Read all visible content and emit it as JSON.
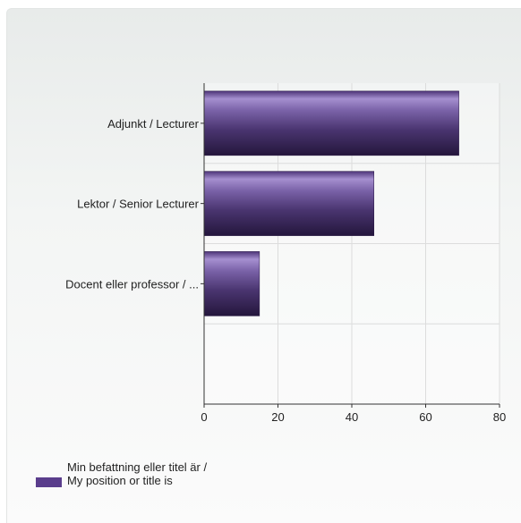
{
  "chart_data": {
    "type": "bar",
    "orientation": "horizontal",
    "categories": [
      "Adjunkt / Lecturer",
      "Lektor / Senior Lecturer",
      "Docent eller professor / ..."
    ],
    "series": [
      {
        "name": "Min befattning eller titel är / My position or title is",
        "values": [
          69,
          46,
          15
        ],
        "color": "#5a3d8c"
      }
    ],
    "xlim": [
      0,
      80
    ],
    "xticks": [
      "0",
      "20",
      "40",
      "60",
      "80"
    ],
    "grid": true,
    "legend_position": "bottom-left"
  }
}
